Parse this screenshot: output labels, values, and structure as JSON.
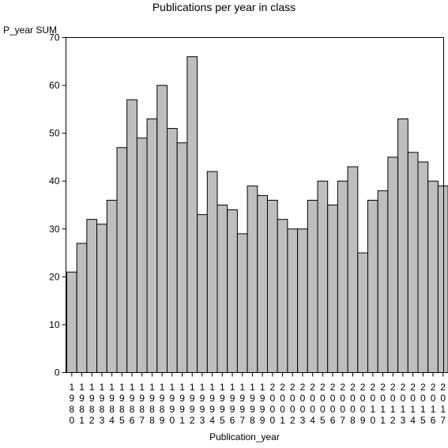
{
  "chart_data": {
    "type": "bar",
    "title": "Publications per year in class",
    "ylabel": "P_year SUM",
    "xlabel": "Publication_year",
    "categories": [
      "1980",
      "1981",
      "1982",
      "1983",
      "1984",
      "1985",
      "1986",
      "1987",
      "1988",
      "1989",
      "1990",
      "1991",
      "1992",
      "1993",
      "1994",
      "1995",
      "1996",
      "1997",
      "1998",
      "1999",
      "2000",
      "2001",
      "2002",
      "2003",
      "2004",
      "2005",
      "2006",
      "2007",
      "2008",
      "2009",
      "2010",
      "2011",
      "2012",
      "2013",
      "2014",
      "2015",
      "2016",
      "2017"
    ],
    "values": [
      21,
      27,
      32,
      31,
      36,
      47,
      57,
      49,
      53,
      60,
      51,
      48,
      66,
      33,
      42,
      35,
      34,
      29,
      39,
      37,
      36,
      32,
      30,
      30,
      36,
      40,
      35,
      40,
      43,
      25,
      36,
      38,
      45,
      53,
      46,
      44,
      40,
      39
    ],
    "ylim": [
      0,
      70
    ],
    "yticks": [
      0,
      10,
      20,
      30,
      40,
      50,
      60,
      70
    ],
    "grid": false,
    "legend": "none",
    "colors": {
      "bar_fill": "#bebebe",
      "bar_stroke": "#000000",
      "axis": "#000000"
    }
  }
}
